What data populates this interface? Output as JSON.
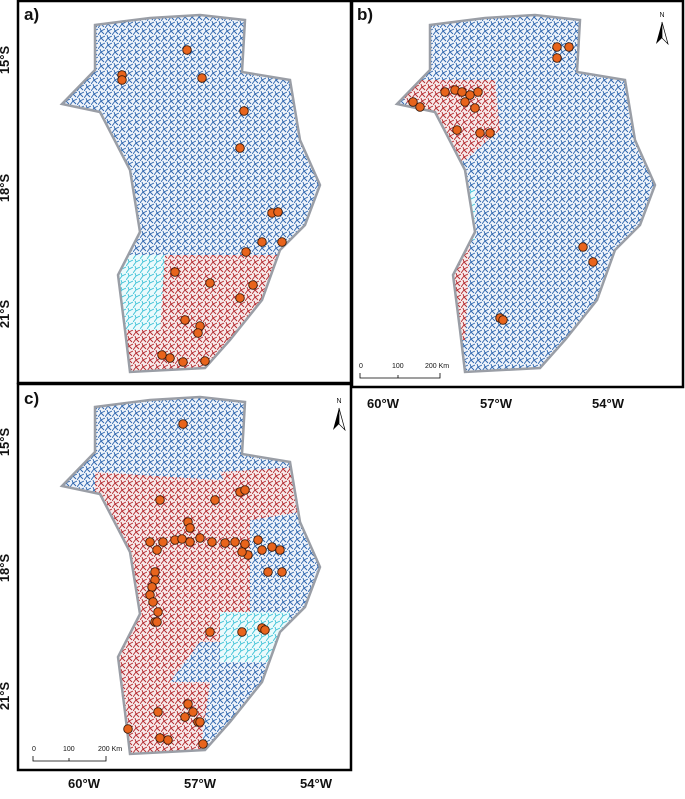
{
  "panels": [
    {
      "label": "a)"
    },
    {
      "label": "b)"
    },
    {
      "label": "c)"
    }
  ],
  "lat_labels": [
    "15°S",
    "18°S",
    "21°S"
  ],
  "lon_labels": [
    "60°W",
    "57°W",
    "54°W"
  ],
  "scale_labels": [
    "0",
    "100",
    "200 Km"
  ],
  "north": "N"
}
